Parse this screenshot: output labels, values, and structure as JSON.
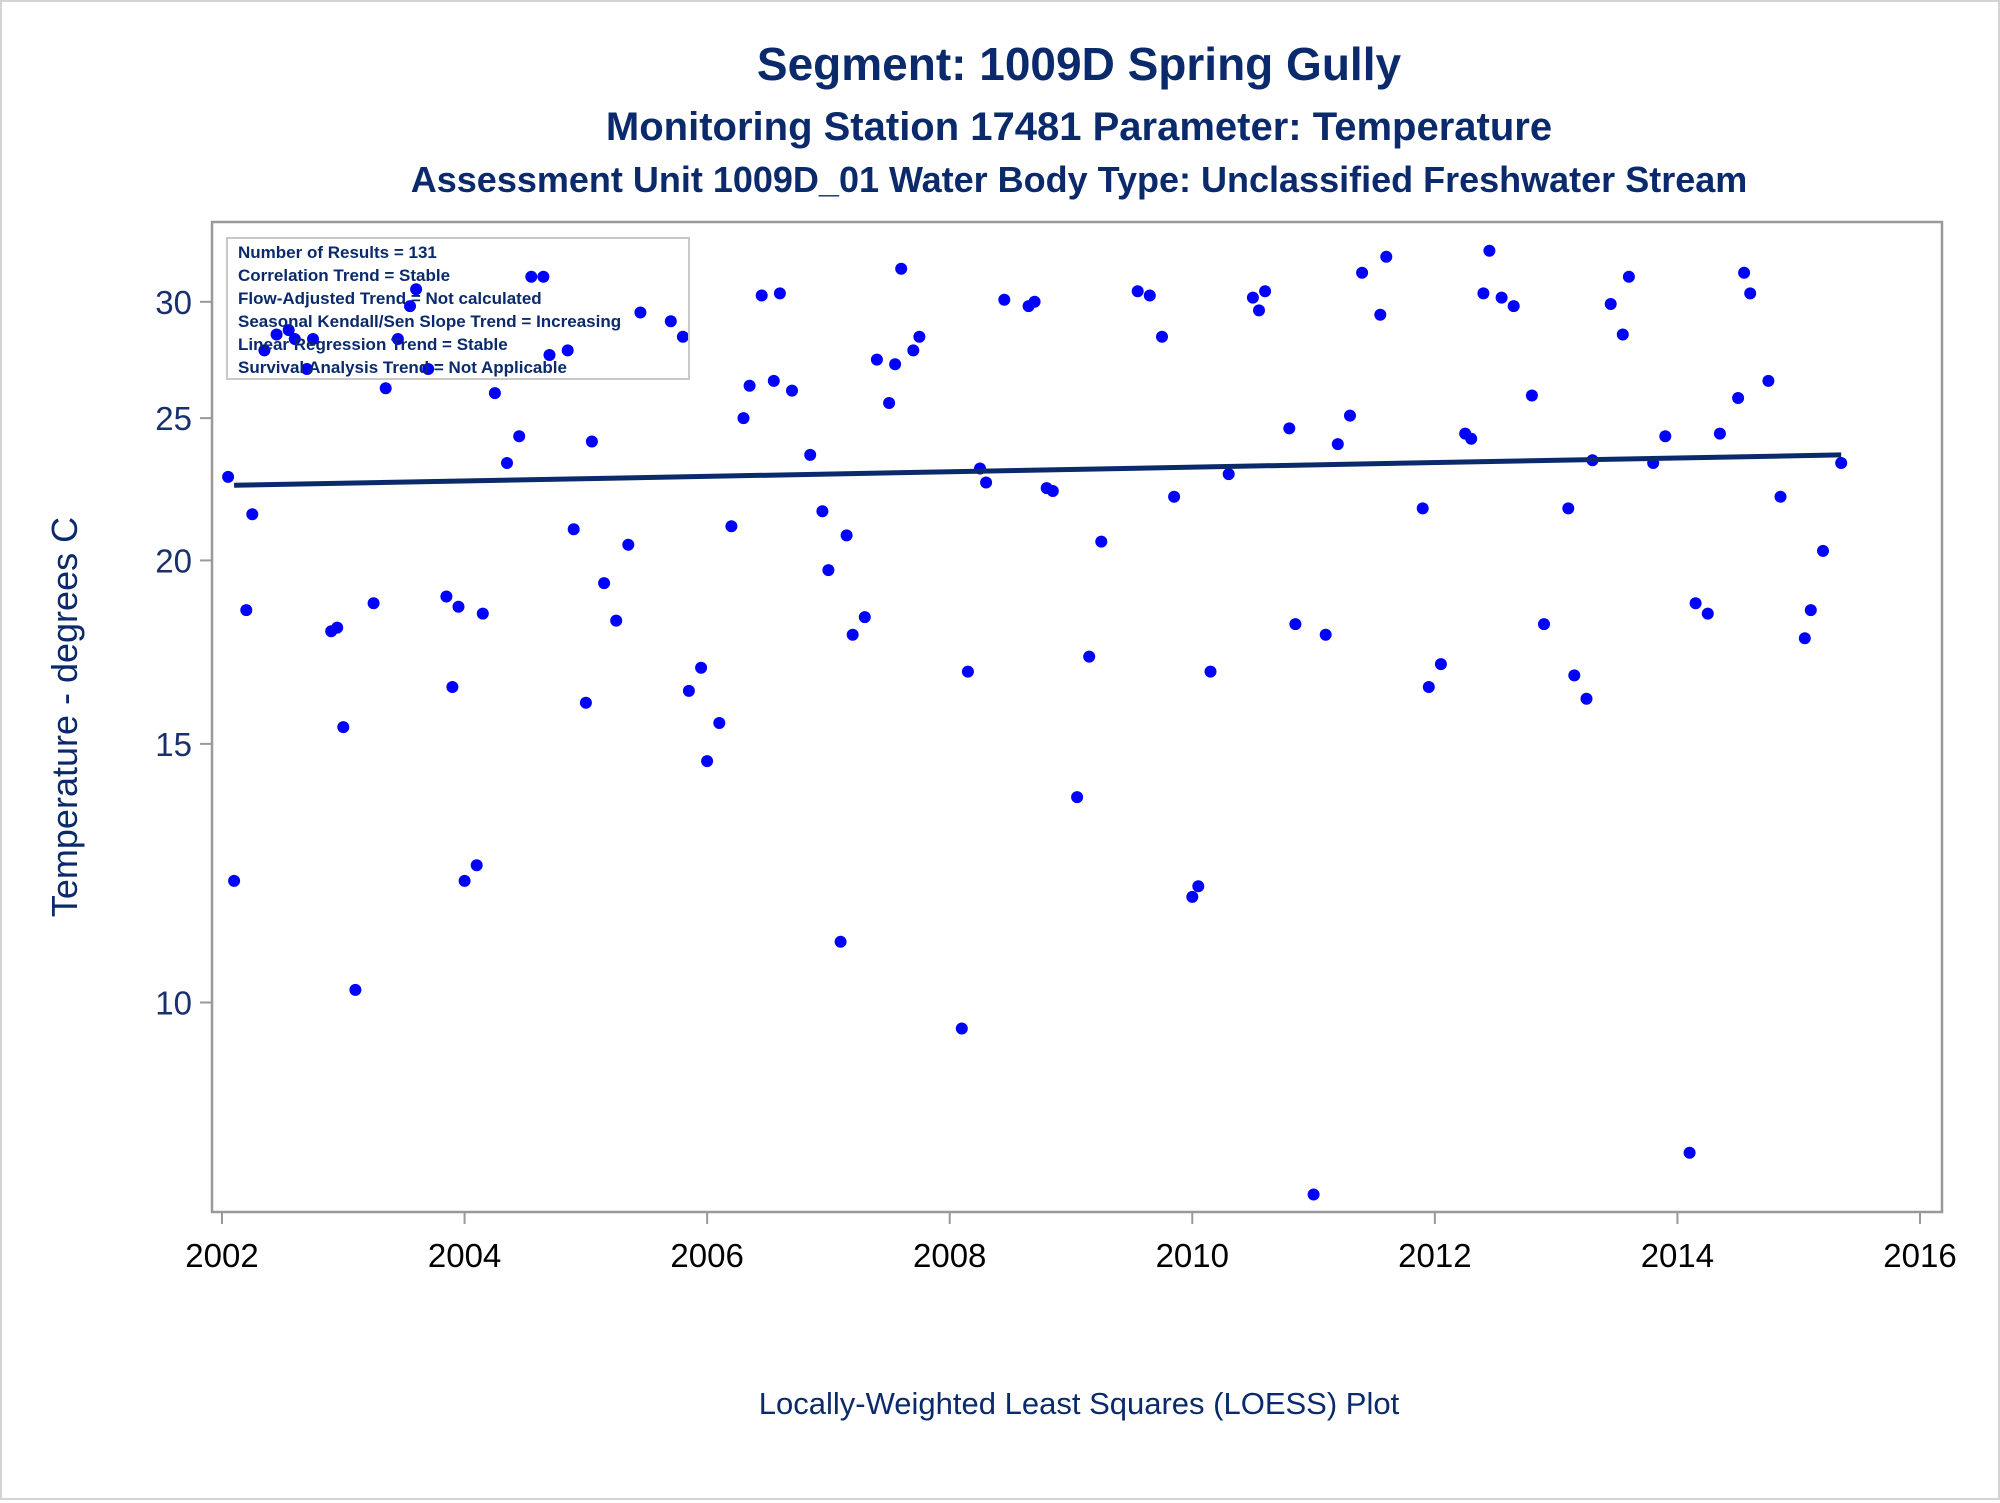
{
  "chart_data": {
    "type": "scatter",
    "title": "Segment: 1009D  Spring Gully",
    "subtitle_1": "Monitoring Station 17481 Parameter: Temperature",
    "subtitle_2": "Assessment Unit 1009D_01   Water Body Type: Unclassified Freshwater Stream",
    "ylabel": "Temperature - degrees C",
    "footnote": "Locally-Weighted Least Squares (LOESS) Plot",
    "y_scale": "log",
    "xlim": [
      2002,
      2016
    ],
    "ylim": [
      7.2,
      34
    ],
    "x_ticks": [
      2002,
      2004,
      2006,
      2008,
      2010,
      2012,
      2014,
      2016
    ],
    "y_ticks": [
      10,
      15,
      20,
      25,
      30
    ],
    "grid": false,
    "stats_box": {
      "location": "top-left",
      "lines": [
        "Number of Results = 131",
        "Correlation Trend = Stable",
        "Flow-Adjusted Trend = Not calculated",
        "Seasonal Kendall/Sen Slope Trend = Increasing",
        "Linear Regression Trend = Stable",
        "Survival Analysis Trend = Not Applicable"
      ]
    },
    "colors": {
      "points": "#0000ff",
      "trend_line": "#0a2a6b",
      "text": "#0a2a6b",
      "frame": "#999999"
    },
    "trend_line": {
      "x": [
        2002.1,
        2015.35
      ],
      "y": [
        22.5,
        23.6
      ]
    },
    "series": [
      {
        "type": "scatter",
        "points": [
          [
            2002.05,
            22.8
          ],
          [
            2002.1,
            12.1
          ],
          [
            2002.2,
            18.5
          ],
          [
            2002.25,
            21.5
          ],
          [
            2002.35,
            27.8
          ],
          [
            2002.45,
            28.5
          ],
          [
            2002.55,
            28.7
          ],
          [
            2002.6,
            28.3
          ],
          [
            2002.7,
            27.0
          ],
          [
            2002.75,
            28.3
          ],
          [
            2002.9,
            17.9
          ],
          [
            2002.95,
            18.0
          ],
          [
            2003.0,
            15.4
          ],
          [
            2003.1,
            10.2
          ],
          [
            2003.25,
            18.7
          ],
          [
            2003.35,
            26.2
          ],
          [
            2003.45,
            28.3
          ],
          [
            2003.55,
            29.8
          ],
          [
            2003.6,
            30.6
          ],
          [
            2003.7,
            27.0
          ],
          [
            2003.85,
            18.9
          ],
          [
            2003.9,
            16.4
          ],
          [
            2003.95,
            18.6
          ],
          [
            2004.0,
            12.1
          ],
          [
            2004.1,
            12.4
          ],
          [
            2004.15,
            18.4
          ],
          [
            2004.25,
            26.0
          ],
          [
            2004.35,
            23.3
          ],
          [
            2004.45,
            24.3
          ],
          [
            2004.55,
            31.2
          ],
          [
            2004.65,
            31.2
          ],
          [
            2004.7,
            27.6
          ],
          [
            2004.85,
            27.8
          ],
          [
            2004.9,
            21.0
          ],
          [
            2005.0,
            16.0
          ],
          [
            2005.05,
            24.1
          ],
          [
            2005.15,
            19.3
          ],
          [
            2005.25,
            18.2
          ],
          [
            2005.35,
            20.5
          ],
          [
            2005.45,
            29.5
          ],
          [
            2005.7,
            29.1
          ],
          [
            2005.8,
            28.4
          ],
          [
            2005.85,
            16.3
          ],
          [
            2005.95,
            16.9
          ],
          [
            2006.0,
            14.6
          ],
          [
            2006.1,
            15.5
          ],
          [
            2006.2,
            21.1
          ],
          [
            2006.3,
            25.0
          ],
          [
            2006.35,
            26.3
          ],
          [
            2006.45,
            30.3
          ],
          [
            2006.55,
            26.5
          ],
          [
            2006.6,
            30.4
          ],
          [
            2006.7,
            26.1
          ],
          [
            2006.85,
            23.6
          ],
          [
            2006.95,
            21.6
          ],
          [
            2007.0,
            19.7
          ],
          [
            2007.1,
            11.0
          ],
          [
            2007.15,
            20.8
          ],
          [
            2007.2,
            17.8
          ],
          [
            2007.3,
            18.3
          ],
          [
            2007.4,
            27.4
          ],
          [
            2007.5,
            25.6
          ],
          [
            2007.55,
            27.2
          ],
          [
            2007.6,
            31.6
          ],
          [
            2007.7,
            27.8
          ],
          [
            2007.75,
            28.4
          ],
          [
            2008.1,
            9.6
          ],
          [
            2008.15,
            16.8
          ],
          [
            2008.25,
            23.1
          ],
          [
            2008.3,
            22.6
          ],
          [
            2008.45,
            30.1
          ],
          [
            2008.65,
            29.8
          ],
          [
            2008.7,
            30.0
          ],
          [
            2008.8,
            22.4
          ],
          [
            2008.85,
            22.3
          ],
          [
            2009.05,
            13.8
          ],
          [
            2009.15,
            17.2
          ],
          [
            2009.25,
            20.6
          ],
          [
            2009.55,
            30.5
          ],
          [
            2009.65,
            30.3
          ],
          [
            2009.75,
            28.4
          ],
          [
            2009.85,
            22.1
          ],
          [
            2010.0,
            11.8
          ],
          [
            2010.05,
            12.0
          ],
          [
            2010.15,
            16.8
          ],
          [
            2010.3,
            22.9
          ],
          [
            2010.5,
            30.2
          ],
          [
            2010.55,
            29.6
          ],
          [
            2010.6,
            30.5
          ],
          [
            2010.8,
            24.6
          ],
          [
            2010.85,
            18.1
          ],
          [
            2011.0,
            7.4
          ],
          [
            2011.1,
            17.8
          ],
          [
            2011.2,
            24.0
          ],
          [
            2011.3,
            25.1
          ],
          [
            2011.4,
            31.4
          ],
          [
            2011.55,
            29.4
          ],
          [
            2011.6,
            32.2
          ],
          [
            2011.9,
            21.7
          ],
          [
            2011.95,
            16.4
          ],
          [
            2012.05,
            17.0
          ],
          [
            2012.25,
            24.4
          ],
          [
            2012.3,
            24.2
          ],
          [
            2012.4,
            30.4
          ],
          [
            2012.45,
            32.5
          ],
          [
            2012.55,
            30.2
          ],
          [
            2012.65,
            29.8
          ],
          [
            2012.8,
            25.9
          ],
          [
            2012.9,
            18.1
          ],
          [
            2013.1,
            21.7
          ],
          [
            2013.15,
            16.7
          ],
          [
            2013.25,
            16.1
          ],
          [
            2013.3,
            23.4
          ],
          [
            2013.45,
            29.9
          ],
          [
            2013.55,
            28.5
          ],
          [
            2013.6,
            31.2
          ],
          [
            2013.8,
            23.3
          ],
          [
            2013.9,
            24.3
          ],
          [
            2014.1,
            7.9
          ],
          [
            2014.15,
            18.7
          ],
          [
            2014.25,
            18.4
          ],
          [
            2014.35,
            24.4
          ],
          [
            2014.5,
            25.8
          ],
          [
            2014.55,
            31.4
          ],
          [
            2014.6,
            30.4
          ],
          [
            2014.75,
            26.5
          ],
          [
            2014.85,
            22.1
          ],
          [
            2015.05,
            17.7
          ],
          [
            2015.1,
            18.5
          ],
          [
            2015.2,
            20.3
          ],
          [
            2015.35,
            23.3
          ]
        ]
      }
    ]
  }
}
